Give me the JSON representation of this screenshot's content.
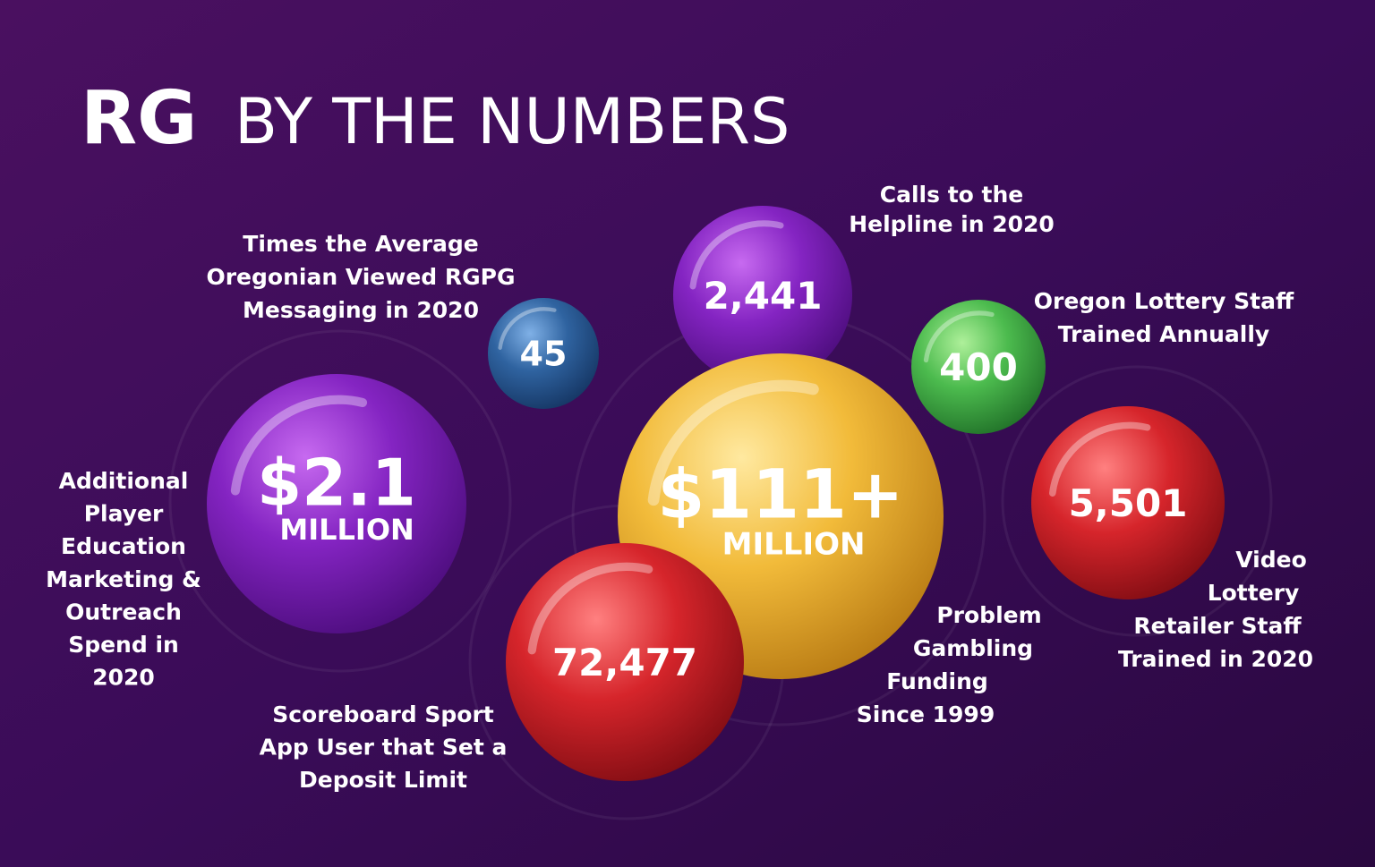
{
  "header": {
    "title_bold": "RG",
    "title_rest": "BY THE NUMBERS"
  },
  "bubbles": [
    {
      "value": "2,441",
      "label": [
        "Calls to the",
        "Helpline in 2020"
      ]
    },
    {
      "value": "45",
      "label": [
        "Times the Average",
        "Oregonian Viewed RGPG",
        "Messaging in 2020"
      ]
    },
    {
      "value": "400",
      "label": [
        "Oregon Lottery Staff",
        "Trained Annually"
      ]
    },
    {
      "value": "$2.1",
      "unit": "MILLION",
      "label": [
        "Additional",
        "Player",
        "Education",
        "Marketing &",
        "Outreach",
        "Spend in",
        "2020"
      ]
    },
    {
      "value": "$111+",
      "unit": "MILLION",
      "label": [
        "Problem",
        "Gambling",
        "Funding",
        "Since 1999"
      ]
    },
    {
      "value": "72,477",
      "label": [
        "Scoreboard Sport",
        "App User that Set a",
        "Deposit Limit"
      ]
    },
    {
      "value": "5,501",
      "label": [
        "Video",
        "Lottery",
        "Retailer Staff",
        "Trained in 2020"
      ]
    }
  ]
}
